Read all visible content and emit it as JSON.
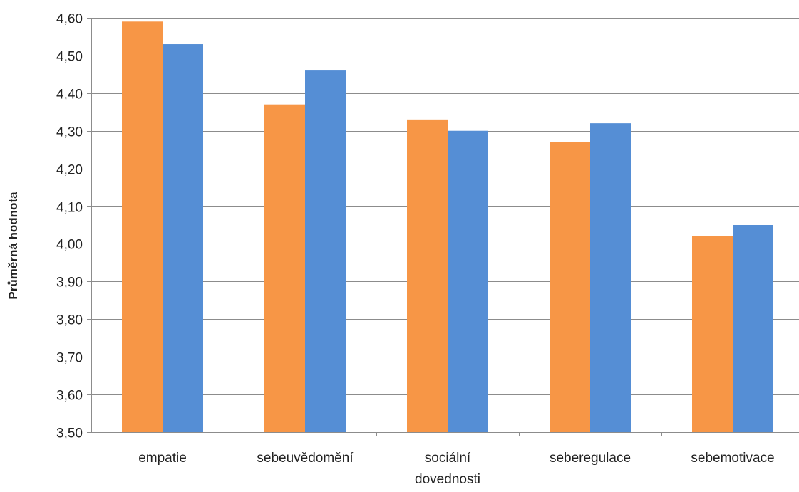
{
  "chart_data": {
    "type": "bar",
    "title": "",
    "xlabel": "",
    "ylabel": "Průměrná hodnota",
    "ylim": [
      3.5,
      4.6
    ],
    "ytick_step": 0.1,
    "yticks": [
      "3,50",
      "3,60",
      "3,70",
      "3,80",
      "3,90",
      "4,00",
      "4,10",
      "4,20",
      "4,30",
      "4,40",
      "4,50",
      "4,60"
    ],
    "grid": true,
    "legend": "none",
    "categories": [
      [
        "empatie"
      ],
      [
        "sebeuvědomění"
      ],
      [
        "sociální",
        "dovednosti"
      ],
      [
        "seberegulace"
      ],
      [
        "sebemotivace"
      ]
    ],
    "series": [
      {
        "color": "#F79646",
        "values": [
          4.59,
          4.37,
          4.33,
          4.27,
          4.02
        ]
      },
      {
        "color": "#558ED5",
        "values": [
          4.53,
          4.46,
          4.3,
          4.32,
          4.05
        ]
      }
    ]
  }
}
